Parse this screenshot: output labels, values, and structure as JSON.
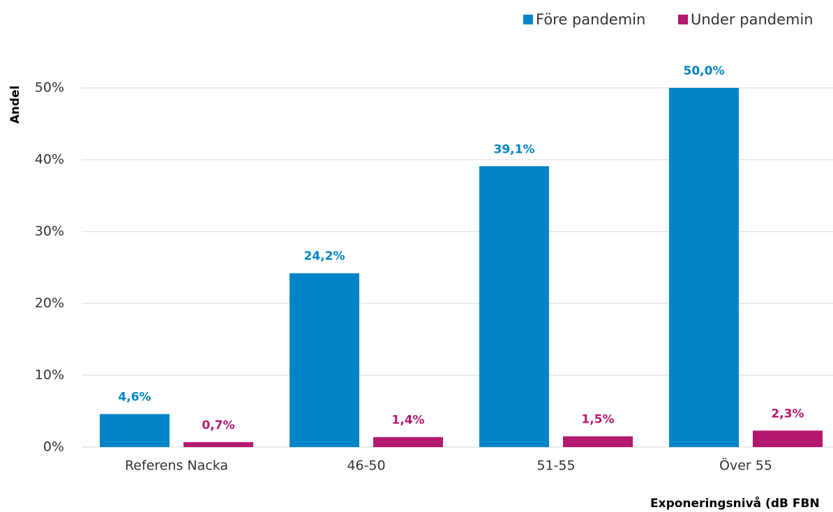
{
  "chart_data": {
    "type": "bar",
    "y_label": "Andel",
    "x_label": "Exponeringsnivå (dB FBN",
    "categories": [
      "Referens Nacka",
      "46-50",
      "51-55",
      "Över 55"
    ],
    "series": [
      {
        "name": "Före pandemin",
        "color": "#0084c8",
        "values": [
          4.6,
          24.2,
          39.1,
          50.0
        ],
        "value_labels": [
          "4,6%",
          "24,2%",
          "39,1%",
          "50,0%"
        ]
      },
      {
        "name": "Under pandemin",
        "color": "#b5186f",
        "values": [
          0.7,
          1.4,
          1.5,
          2.3
        ],
        "value_labels": [
          "0,7%",
          "1,4%",
          "1,5%",
          "2,3%"
        ]
      }
    ],
    "ylim": [
      0,
      50
    ],
    "yticks": [
      {
        "value": 0,
        "label": "0%"
      },
      {
        "value": 10,
        "label": "10%"
      },
      {
        "value": 20,
        "label": "20%"
      },
      {
        "value": 30,
        "label": "30%"
      },
      {
        "value": 40,
        "label": "40%"
      },
      {
        "value": 50,
        "label": "50%"
      }
    ],
    "grid": true,
    "legend": "top-right"
  }
}
